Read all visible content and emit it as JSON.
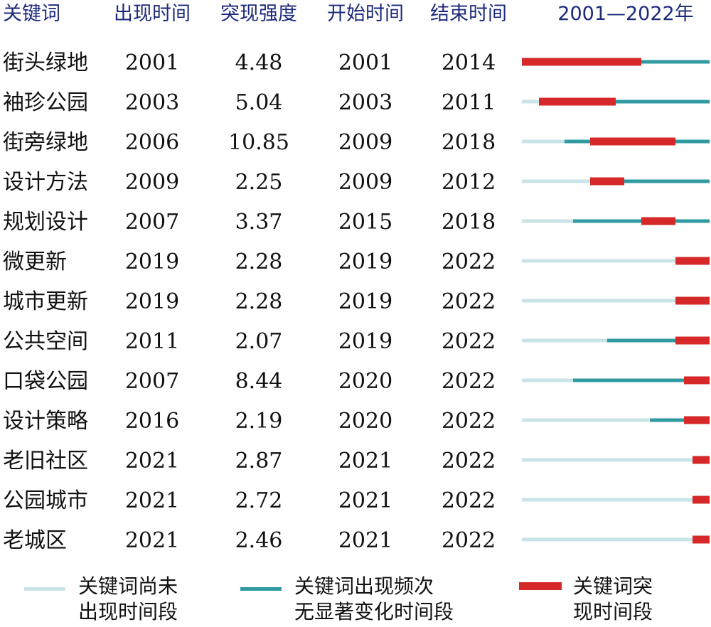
{
  "chart_data": {
    "type": "table",
    "columns": [
      "关键词",
      "出现时间",
      "突现强度",
      "开始时间",
      "结束时间",
      "2001—2022年"
    ],
    "timeline_range": [
      2001,
      2022
    ],
    "rows": [
      {
        "keyword": "街头绿地",
        "first_appearance": "2001",
        "strength": "4.48",
        "begin": "2001",
        "end": "2014"
      },
      {
        "keyword": "袖珍公园",
        "first_appearance": "2003",
        "strength": "5.04",
        "begin": "2003",
        "end": "2011"
      },
      {
        "keyword": "街旁绿地",
        "first_appearance": "2006",
        "strength": "10.85",
        "begin": "2009",
        "end": "2018"
      },
      {
        "keyword": "设计方法",
        "first_appearance": "2009",
        "strength": "2.25",
        "begin": "2009",
        "end": "2012"
      },
      {
        "keyword": "规划设计",
        "first_appearance": "2007",
        "strength": "3.37",
        "begin": "2015",
        "end": "2018"
      },
      {
        "keyword": "微更新",
        "first_appearance": "2019",
        "strength": "2.28",
        "begin": "2019",
        "end": "2022"
      },
      {
        "keyword": "城市更新",
        "first_appearance": "2019",
        "strength": "2.28",
        "begin": "2019",
        "end": "2022"
      },
      {
        "keyword": "公共空间",
        "first_appearance": "2011",
        "strength": "2.07",
        "begin": "2019",
        "end": "2022"
      },
      {
        "keyword": "口袋公园",
        "first_appearance": "2007",
        "strength": "8.44",
        "begin": "2020",
        "end": "2022"
      },
      {
        "keyword": "设计策略",
        "first_appearance": "2016",
        "strength": "2.19",
        "begin": "2020",
        "end": "2022"
      },
      {
        "keyword": "老旧社区",
        "first_appearance": "2021",
        "strength": "2.87",
        "begin": "2021",
        "end": "2022"
      },
      {
        "keyword": "公园城市",
        "first_appearance": "2021",
        "strength": "2.72",
        "begin": "2021",
        "end": "2022"
      },
      {
        "keyword": "老城区",
        "first_appearance": "2021",
        "strength": "2.46",
        "begin": "2021",
        "end": "2022"
      }
    ],
    "legend": [
      {
        "lines": [
          "关键词尚未",
          "出现时间段"
        ],
        "color": "#c9e4e6"
      },
      {
        "lines": [
          "关键词出现频次",
          "无显著变化时间段"
        ],
        "color": "#2f9aa0"
      },
      {
        "lines": [
          "关键词突",
          "现时间段"
        ],
        "color": "#d62828"
      }
    ],
    "colors": {
      "header": "#1c2a7a",
      "not_yet": "#c9e4e6",
      "present": "#2f9aa0",
      "burst": "#d62828"
    }
  }
}
